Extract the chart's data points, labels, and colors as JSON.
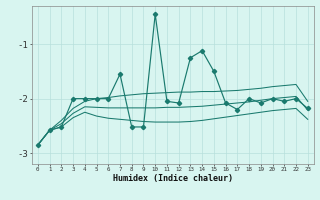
{
  "xlabel": "Humidex (Indice chaleur)",
  "x": [
    0,
    1,
    2,
    3,
    4,
    5,
    6,
    7,
    8,
    9,
    10,
    11,
    12,
    13,
    14,
    15,
    16,
    17,
    18,
    19,
    20,
    21,
    22,
    23
  ],
  "y_line": [
    -2.85,
    -2.58,
    -2.52,
    -2.0,
    -2.0,
    -2.0,
    -2.0,
    -1.55,
    -2.52,
    -2.52,
    -0.45,
    -2.05,
    -2.08,
    -1.25,
    -1.12,
    -1.5,
    -2.08,
    -2.2,
    -2.0,
    -2.08,
    -2.0,
    -2.05,
    -2.0,
    -2.18
  ],
  "y_smooth_upper": [
    -2.85,
    -2.58,
    -2.4,
    -2.18,
    -2.05,
    -2.0,
    -1.98,
    -1.95,
    -1.93,
    -1.91,
    -1.9,
    -1.89,
    -1.88,
    -1.88,
    -1.87,
    -1.87,
    -1.86,
    -1.85,
    -1.83,
    -1.81,
    -1.78,
    -1.76,
    -1.74,
    -2.05
  ],
  "y_smooth_lower": [
    -2.85,
    -2.58,
    -2.52,
    -2.35,
    -2.25,
    -2.32,
    -2.36,
    -2.38,
    -2.4,
    -2.42,
    -2.43,
    -2.43,
    -2.43,
    -2.42,
    -2.4,
    -2.37,
    -2.34,
    -2.31,
    -2.28,
    -2.25,
    -2.22,
    -2.2,
    -2.18,
    -2.38
  ],
  "y_smooth_mid": [
    -2.85,
    -2.58,
    -2.46,
    -2.27,
    -2.15,
    -2.16,
    -2.17,
    -2.17,
    -2.17,
    -2.17,
    -2.17,
    -2.16,
    -2.16,
    -2.15,
    -2.14,
    -2.12,
    -2.1,
    -2.08,
    -2.06,
    -2.03,
    -2.0,
    -1.98,
    -1.96,
    -2.21
  ],
  "line_color": "#1a7a6e",
  "bg_color": "#d8f5f0",
  "grid_color": "#b8e0dc",
  "ylim": [
    -3.2,
    -0.3
  ],
  "yticks": [
    -3,
    -2,
    -1
  ],
  "xticks": [
    0,
    1,
    2,
    3,
    4,
    5,
    6,
    7,
    8,
    9,
    10,
    11,
    12,
    13,
    14,
    15,
    16,
    17,
    18,
    19,
    20,
    21,
    22,
    23
  ]
}
